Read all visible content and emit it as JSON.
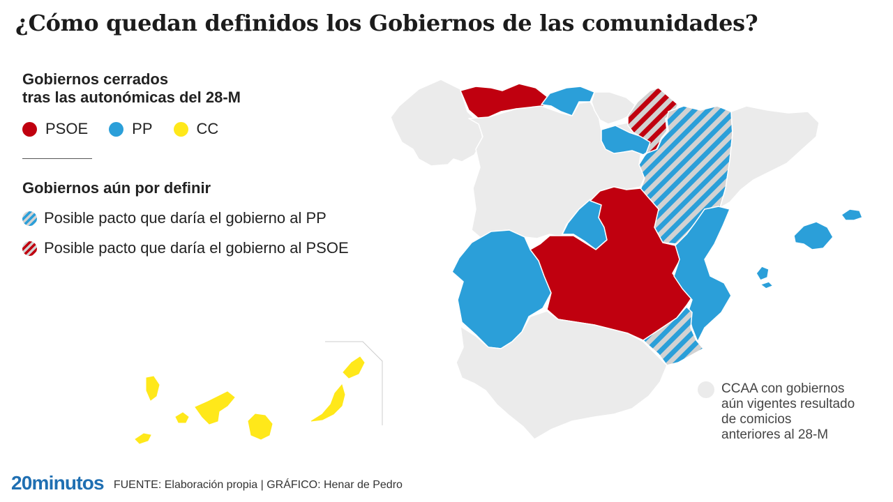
{
  "title": "¿Cómo quedan definidos los Gobiernos de las comunidades?",
  "closed": {
    "heading_line1": "Gobiernos cerrados",
    "heading_line2": "tras las autonómicas del 28-M",
    "parties": [
      {
        "label": "PSOE",
        "color": "#c0000f"
      },
      {
        "label": "PP",
        "color": "#2b9fd9"
      },
      {
        "label": "CC",
        "color": "#ffe81a"
      }
    ]
  },
  "pending": {
    "heading": "Gobiernos aún por definir",
    "pact_pp": "Posible pacto que daría el gobierno al PP",
    "pact_psoe": "Posible pacto que daría el gobierno al PSOE"
  },
  "vigentes": {
    "line1": "CCAA con gobiernos",
    "line2": "aún vigentes resultado",
    "line3": "de comicios",
    "line4": "anteriores al 28-M",
    "color": "#ebebeb"
  },
  "footer": {
    "logo": "20minutos",
    "source": "FUENTE: Elaboración propia  |  GRÁFICO: Henar de Pedro"
  },
  "colors": {
    "psoe": "#c0000f",
    "pp": "#2b9fd9",
    "cc": "#ffe81a",
    "grey": "#ebebeb",
    "stripe_bg": "#d2d2d2"
  }
}
